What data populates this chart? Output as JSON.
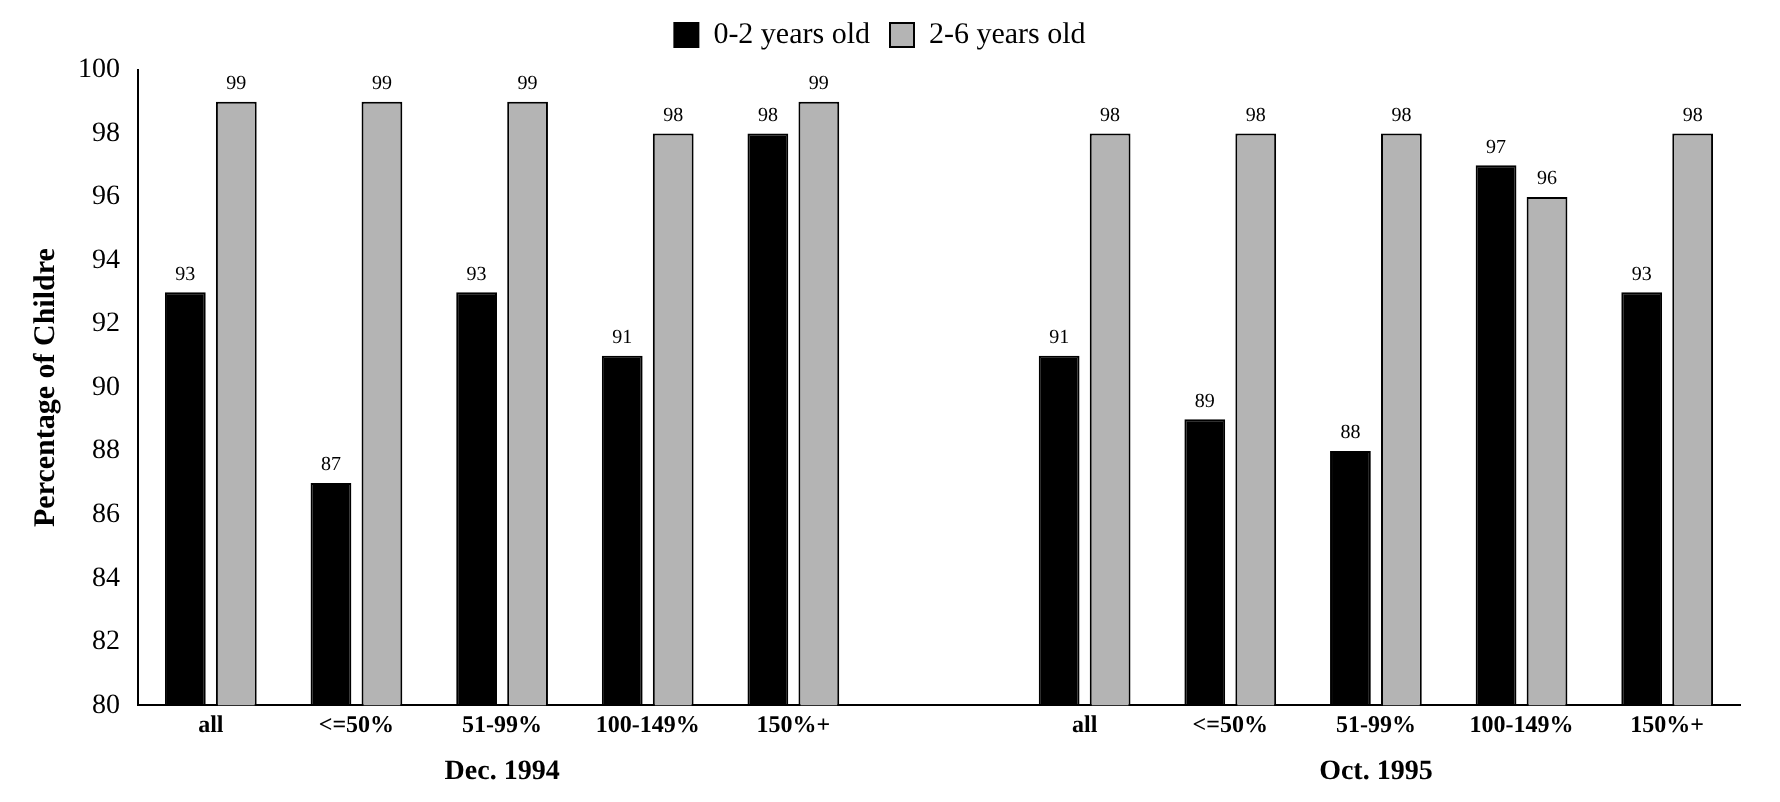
{
  "chart_data": {
    "type": "bar",
    "ylabel": "Percentage of Childre",
    "categories": [
      "all",
      "<=50%",
      "51-99%",
      "100-149%",
      "150%+",
      null,
      "all",
      "<=50%",
      "51-99%",
      "100-149%",
      "150%+"
    ],
    "series": [
      {
        "name": "0-2 years old",
        "color": "#000000",
        "values": [
          93,
          87,
          93,
          91,
          98,
          null,
          91,
          89,
          88,
          97,
          93
        ]
      },
      {
        "name": "2-6 years old",
        "color": "#b4b4b4",
        "values": [
          99,
          99,
          99,
          98,
          99,
          null,
          98,
          98,
          98,
          96,
          98
        ]
      }
    ],
    "ylim": [
      80,
      100
    ],
    "yticks": [
      80,
      82,
      84,
      86,
      88,
      90,
      92,
      94,
      96,
      98,
      100
    ],
    "grid": false,
    "legend": "top",
    "data_labels": true,
    "annotations": [
      "Dec. 1994",
      "Oct. 1995"
    ]
  }
}
